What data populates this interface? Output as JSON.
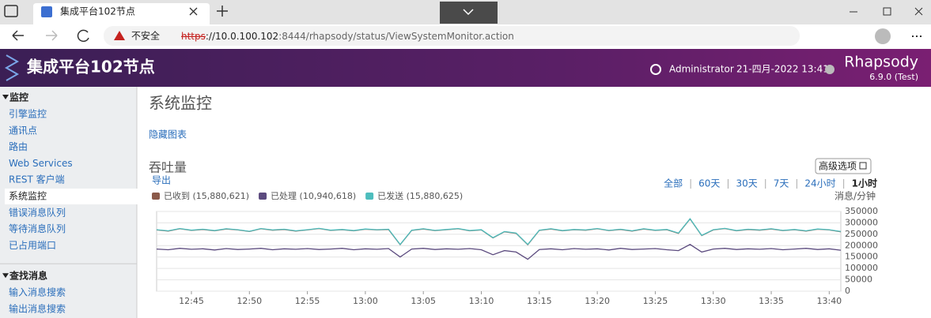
{
  "browser": {
    "tab_title": "集成平台102节点",
    "security": "不安全",
    "url_scheme": "https",
    "url_host": "://10.0.100.102",
    "url_path": ":8444/rhapsody/status/ViewSystemMonitor.action"
  },
  "header": {
    "title": "集成平台102节点",
    "user": "Administrator",
    "datetime": "21-四月-2022 13:41",
    "product": "Rhapsody",
    "version": "6.9.0 (Test)"
  },
  "sidebar": {
    "sections": [
      {
        "title": "监控",
        "items": [
          "引擎监控",
          "通讯点",
          "路由",
          "Web Services",
          "REST 客户端",
          "系统监控",
          "错误消息队列",
          "等待消息队列",
          "已占用端口"
        ],
        "selected": 5
      },
      {
        "title": "查找消息",
        "items": [
          "输入消息搜索",
          "输出消息搜索"
        ]
      }
    ]
  },
  "main": {
    "title": "系统监控",
    "hide_charts": "隐藏图表",
    "section": "吞吐量",
    "export": "导出",
    "advanced": "高级选项",
    "ranges": [
      "全部",
      "60天",
      "30天",
      "7天",
      "24小时",
      "1小时"
    ],
    "active_range": 5,
    "unit": "消息/分钟"
  },
  "chart_data": {
    "type": "line",
    "x": [
      "12:42",
      "12:43",
      "12:44",
      "12:45",
      "12:46",
      "12:47",
      "12:48",
      "12:49",
      "12:50",
      "12:51",
      "12:52",
      "12:53",
      "12:54",
      "12:55",
      "12:56",
      "12:57",
      "12:58",
      "12:59",
      "13:00",
      "13:01",
      "13:02",
      "13:03",
      "13:04",
      "13:05",
      "13:06",
      "13:07",
      "13:08",
      "13:09",
      "13:10",
      "13:11",
      "13:12",
      "13:13",
      "13:14",
      "13:15",
      "13:16",
      "13:17",
      "13:18",
      "13:19",
      "13:20",
      "13:21",
      "13:22",
      "13:23",
      "13:24",
      "13:25",
      "13:26",
      "13:27",
      "13:28",
      "13:29",
      "13:30",
      "13:31",
      "13:32",
      "13:33",
      "13:34",
      "13:35",
      "13:36",
      "13:37",
      "13:38",
      "13:39",
      "13:40",
      "13:41"
    ],
    "series": [
      {
        "name": "已收到 (15,880,621)",
        "color": "#8b5a4a",
        "values": [
          269000,
          264000,
          274000,
          267000,
          271000,
          265000,
          273000,
          269000,
          262000,
          274000,
          268000,
          271000,
          264000,
          269000,
          275000,
          267000,
          270000,
          265000,
          272000,
          269000,
          271000,
          204000,
          267000,
          273000,
          266000,
          270000,
          274000,
          265000,
          269000,
          234000,
          261000,
          254000,
          204000,
          267000,
          273000,
          265000,
          270000,
          268000,
          274000,
          266000,
          271000,
          264000,
          273000,
          267000,
          270000,
          254000,
          317000,
          244000,
          269000,
          275000,
          265000,
          271000,
          268000,
          273000,
          266000,
          270000,
          264000,
          272000,
          269000,
          261000
        ]
      },
      {
        "name": "已处理 (10,940,618)",
        "color": "#5b4a7e",
        "values": [
          185000,
          182000,
          188000,
          184000,
          186000,
          181000,
          187000,
          183000,
          185000,
          188000,
          182000,
          186000,
          184000,
          187000,
          183000,
          185000,
          188000,
          182000,
          186000,
          184000,
          187000,
          150000,
          185000,
          188000,
          183000,
          186000,
          184000,
          187000,
          182000,
          160000,
          178000,
          172000,
          140000,
          183000,
          186000,
          182000,
          187000,
          184000,
          186000,
          181000,
          188000,
          183000,
          185000,
          187000,
          182000,
          178000,
          205000,
          172000,
          185000,
          188000,
          183000,
          186000,
          184000,
          187000,
          182000,
          185000,
          188000,
          183000,
          186000,
          180000
        ]
      },
      {
        "name": "已发送 (15,880,625)",
        "color": "#4dbdbd",
        "values": [
          270000,
          265000,
          275000,
          268000,
          272000,
          266000,
          274000,
          270000,
          263000,
          275000,
          269000,
          272000,
          265000,
          270000,
          276000,
          268000,
          271000,
          266000,
          273000,
          270000,
          272000,
          205000,
          268000,
          274000,
          267000,
          271000,
          275000,
          266000,
          270000,
          235000,
          262000,
          255000,
          205000,
          268000,
          274000,
          266000,
          271000,
          269000,
          275000,
          267000,
          272000,
          265000,
          274000,
          268000,
          271000,
          255000,
          318000,
          245000,
          270000,
          276000,
          266000,
          272000,
          269000,
          274000,
          267000,
          271000,
          265000,
          273000,
          270000,
          262000
        ]
      }
    ],
    "xlim": [
      "12:42",
      "13:41"
    ],
    "xticks": [
      "12:45",
      "12:50",
      "12:55",
      "13:00",
      "13:05",
      "13:10",
      "13:15",
      "13:20",
      "13:25",
      "13:30",
      "13:35",
      "13:40"
    ],
    "ylim": [
      0,
      350000
    ],
    "yticks": [
      0,
      50000,
      100000,
      150000,
      200000,
      250000,
      300000,
      350000
    ],
    "grid": true
  }
}
